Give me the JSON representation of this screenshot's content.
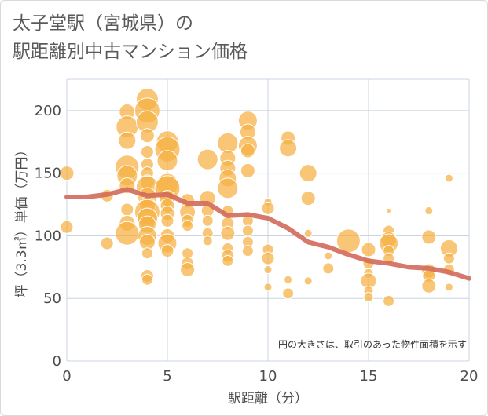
{
  "title_line1": "太子堂駅（宮城県）の",
  "title_line2": "駅距離別中古マンション価格",
  "colors": {
    "bubble": "#f5b041",
    "bubble_edge": "#ffffff",
    "trend": "#d16a5a",
    "grid": "#c8d4df",
    "background": "#ffffff"
  },
  "chart_data": {
    "type": "scatter",
    "xlabel": "駅距離（分）",
    "ylabel": "坪（3.3㎡）単価（万円）",
    "xlim": [
      0,
      20
    ],
    "ylim": [
      0,
      225
    ],
    "x_ticks": [
      0,
      5,
      10,
      15,
      20
    ],
    "y_ticks": [
      0,
      50,
      100,
      150,
      200
    ],
    "grid": true,
    "annotation": "円の大きさは、取引のあった物件面積を示す",
    "points": [
      {
        "x": 0,
        "y": 150,
        "s": 9
      },
      {
        "x": 0,
        "y": 107,
        "s": 8
      },
      {
        "x": 2,
        "y": 132,
        "s": 8
      },
      {
        "x": 2,
        "y": 94,
        "s": 8
      },
      {
        "x": 3,
        "y": 199,
        "s": 10
      },
      {
        "x": 3,
        "y": 187,
        "s": 14
      },
      {
        "x": 3,
        "y": 176,
        "s": 11
      },
      {
        "x": 3,
        "y": 155,
        "s": 15
      },
      {
        "x": 3,
        "y": 148,
        "s": 13
      },
      {
        "x": 3,
        "y": 140,
        "s": 10
      },
      {
        "x": 3,
        "y": 121,
        "s": 8
      },
      {
        "x": 3,
        "y": 110,
        "s": 10
      },
      {
        "x": 3,
        "y": 102,
        "s": 15
      },
      {
        "x": 4,
        "y": 209,
        "s": 14
      },
      {
        "x": 4,
        "y": 200,
        "s": 16
      },
      {
        "x": 4,
        "y": 191,
        "s": 14
      },
      {
        "x": 4,
        "y": 180,
        "s": 9
      },
      {
        "x": 4,
        "y": 167,
        "s": 8
      },
      {
        "x": 4,
        "y": 157,
        "s": 8
      },
      {
        "x": 4,
        "y": 150,
        "s": 8
      },
      {
        "x": 4,
        "y": 143,
        "s": 9
      },
      {
        "x": 4,
        "y": 139,
        "s": 14
      },
      {
        "x": 4,
        "y": 131,
        "s": 12
      },
      {
        "x": 4,
        "y": 125,
        "s": 10
      },
      {
        "x": 4,
        "y": 119,
        "s": 16
      },
      {
        "x": 4,
        "y": 114,
        "s": 13
      },
      {
        "x": 4,
        "y": 109,
        "s": 11
      },
      {
        "x": 4,
        "y": 100,
        "s": 12
      },
      {
        "x": 4,
        "y": 95,
        "s": 10
      },
      {
        "x": 4,
        "y": 86,
        "s": 7
      },
      {
        "x": 4,
        "y": 68,
        "s": 8
      },
      {
        "x": 4,
        "y": 65,
        "s": 7
      },
      {
        "x": 5,
        "y": 175,
        "s": 14
      },
      {
        "x": 5,
        "y": 169,
        "s": 16
      },
      {
        "x": 5,
        "y": 160,
        "s": 13
      },
      {
        "x": 5,
        "y": 141,
        "s": 14
      },
      {
        "x": 5,
        "y": 138,
        "s": 16
      },
      {
        "x": 5,
        "y": 130,
        "s": 10
      },
      {
        "x": 5,
        "y": 124,
        "s": 9
      },
      {
        "x": 5,
        "y": 118,
        "s": 9
      },
      {
        "x": 5,
        "y": 112,
        "s": 8
      },
      {
        "x": 5,
        "y": 100,
        "s": 9
      },
      {
        "x": 5,
        "y": 94,
        "s": 12
      },
      {
        "x": 5,
        "y": 88,
        "s": 8
      },
      {
        "x": 6,
        "y": 128,
        "s": 9
      },
      {
        "x": 6,
        "y": 119,
        "s": 10
      },
      {
        "x": 6,
        "y": 112,
        "s": 8
      },
      {
        "x": 6,
        "y": 108,
        "s": 7
      },
      {
        "x": 6,
        "y": 86,
        "s": 7
      },
      {
        "x": 6,
        "y": 78,
        "s": 8
      },
      {
        "x": 6,
        "y": 73,
        "s": 9
      },
      {
        "x": 7,
        "y": 161,
        "s": 13
      },
      {
        "x": 7,
        "y": 130,
        "s": 10
      },
      {
        "x": 7,
        "y": 120,
        "s": 8
      },
      {
        "x": 7,
        "y": 112,
        "s": 7
      },
      {
        "x": 7,
        "y": 102,
        "s": 7
      },
      {
        "x": 7,
        "y": 96,
        "s": 6
      },
      {
        "x": 8,
        "y": 174,
        "s": 13
      },
      {
        "x": 8,
        "y": 162,
        "s": 10
      },
      {
        "x": 8,
        "y": 154,
        "s": 10
      },
      {
        "x": 8,
        "y": 146,
        "s": 11
      },
      {
        "x": 8,
        "y": 138,
        "s": 13
      },
      {
        "x": 8,
        "y": 120,
        "s": 7
      },
      {
        "x": 8,
        "y": 110,
        "s": 8
      },
      {
        "x": 8,
        "y": 102,
        "s": 9
      },
      {
        "x": 8,
        "y": 90,
        "s": 7
      },
      {
        "x": 8,
        "y": 84,
        "s": 8
      },
      {
        "x": 8,
        "y": 80,
        "s": 7
      },
      {
        "x": 9,
        "y": 192,
        "s": 12
      },
      {
        "x": 9,
        "y": 183,
        "s": 10
      },
      {
        "x": 9,
        "y": 172,
        "s": 12
      },
      {
        "x": 9,
        "y": 168,
        "s": 9
      },
      {
        "x": 9,
        "y": 152,
        "s": 9
      },
      {
        "x": 9,
        "y": 112,
        "s": 7
      },
      {
        "x": 9,
        "y": 104,
        "s": 7
      },
      {
        "x": 9,
        "y": 95,
        "s": 7
      },
      {
        "x": 9,
        "y": 88,
        "s": 7
      },
      {
        "x": 10,
        "y": 127,
        "s": 5
      },
      {
        "x": 10,
        "y": 122,
        "s": 8
      },
      {
        "x": 10,
        "y": 89,
        "s": 7
      },
      {
        "x": 10,
        "y": 82,
        "s": 8
      },
      {
        "x": 10,
        "y": 73,
        "s": 5
      },
      {
        "x": 10,
        "y": 59,
        "s": 5
      },
      {
        "x": 11,
        "y": 178,
        "s": 9
      },
      {
        "x": 11,
        "y": 170,
        "s": 11
      },
      {
        "x": 11,
        "y": 65,
        "s": 5
      },
      {
        "x": 11,
        "y": 54,
        "s": 7
      },
      {
        "x": 12,
        "y": 150,
        "s": 11
      },
      {
        "x": 12,
        "y": 130,
        "s": 9
      },
      {
        "x": 12,
        "y": 102,
        "s": 5
      },
      {
        "x": 12,
        "y": 64,
        "s": 5
      },
      {
        "x": 13,
        "y": 84,
        "s": 5
      },
      {
        "x": 13,
        "y": 74,
        "s": 7
      },
      {
        "x": 14,
        "y": 96,
        "s": 15
      },
      {
        "x": 15,
        "y": 89,
        "s": 9
      },
      {
        "x": 15,
        "y": 78,
        "s": 7
      },
      {
        "x": 15,
        "y": 70,
        "s": 6
      },
      {
        "x": 15,
        "y": 64,
        "s": 10
      },
      {
        "x": 15,
        "y": 56,
        "s": 6
      },
      {
        "x": 15,
        "y": 51,
        "s": 6
      },
      {
        "x": 16,
        "y": 120,
        "s": 3
      },
      {
        "x": 16,
        "y": 104,
        "s": 7
      },
      {
        "x": 16,
        "y": 97,
        "s": 10
      },
      {
        "x": 16,
        "y": 94,
        "s": 12
      },
      {
        "x": 16,
        "y": 88,
        "s": 7
      },
      {
        "x": 16,
        "y": 82,
        "s": 7
      },
      {
        "x": 16,
        "y": 48,
        "s": 7
      },
      {
        "x": 18,
        "y": 120,
        "s": 5
      },
      {
        "x": 18,
        "y": 99,
        "s": 9
      },
      {
        "x": 18,
        "y": 72,
        "s": 9
      },
      {
        "x": 18,
        "y": 68,
        "s": 8
      },
      {
        "x": 18,
        "y": 60,
        "s": 9
      },
      {
        "x": 19,
        "y": 146,
        "s": 5
      },
      {
        "x": 19,
        "y": 90,
        "s": 11
      },
      {
        "x": 19,
        "y": 82,
        "s": 7
      },
      {
        "x": 19,
        "y": 73,
        "s": 7
      },
      {
        "x": 19,
        "y": 59,
        "s": 5
      }
    ],
    "trend": [
      {
        "x": 0,
        "y": 131
      },
      {
        "x": 1,
        "y": 131
      },
      {
        "x": 2,
        "y": 133
      },
      {
        "x": 3,
        "y": 137
      },
      {
        "x": 4,
        "y": 132
      },
      {
        "x": 5,
        "y": 133
      },
      {
        "x": 6,
        "y": 126
      },
      {
        "x": 7,
        "y": 126
      },
      {
        "x": 8,
        "y": 116
      },
      {
        "x": 9,
        "y": 117
      },
      {
        "x": 10,
        "y": 114
      },
      {
        "x": 11,
        "y": 106
      },
      {
        "x": 12,
        "y": 95
      },
      {
        "x": 13,
        "y": 91
      },
      {
        "x": 14,
        "y": 85
      },
      {
        "x": 15,
        "y": 80
      },
      {
        "x": 16,
        "y": 78
      },
      {
        "x": 17,
        "y": 75
      },
      {
        "x": 18,
        "y": 74
      },
      {
        "x": 19,
        "y": 71
      },
      {
        "x": 20,
        "y": 66
      }
    ]
  }
}
